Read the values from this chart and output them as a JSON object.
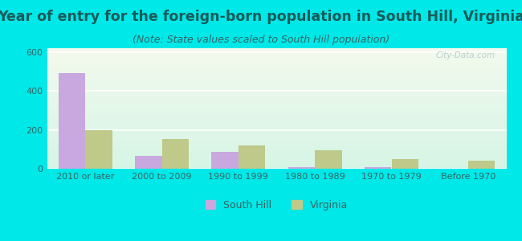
{
  "title": "Year of entry for the foreign-born population in South Hill, Virginia",
  "subtitle": "(Note: State values scaled to South Hill population)",
  "categories": [
    "2010 or later",
    "2000 to 2009",
    "1990 to 1999",
    "1980 to 1989",
    "1970 to 1979",
    "Before 1970"
  ],
  "south_hill_values": [
    490,
    65,
    85,
    10,
    8,
    0
  ],
  "virginia_values": [
    200,
    155,
    120,
    95,
    50,
    42
  ],
  "south_hill_color": "#c9a8df",
  "virginia_color": "#bec98a",
  "background_outer": "#00e8e8",
  "ylim": [
    0,
    620
  ],
  "yticks": [
    0,
    200,
    400,
    600
  ],
  "bar_width": 0.35,
  "title_fontsize": 12.5,
  "subtitle_fontsize": 9,
  "tick_fontsize": 8,
  "legend_fontsize": 9,
  "title_color": "#1a5a5a",
  "subtitle_color": "#336666",
  "tick_color": "#336666"
}
